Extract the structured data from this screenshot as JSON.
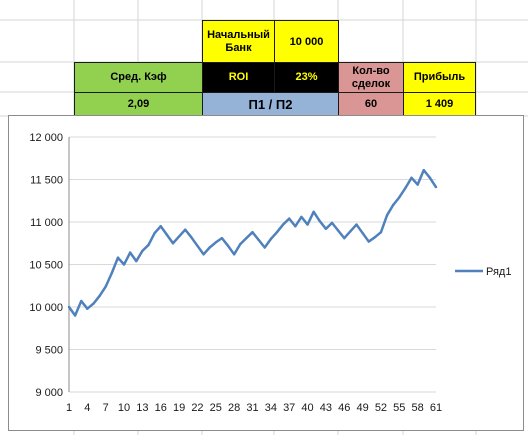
{
  "sheet": {
    "start_bank_label": "Начальный Банк",
    "start_bank_value": "10 000",
    "avg_coef_label": "Сред. Кэф",
    "avg_coef_value": "2,09",
    "roi_label": "ROI",
    "roi_value": "23%",
    "ratio_label": "П1 / П2",
    "deals_label": "Кол-во сделок",
    "deals_value": "60",
    "profit_label": "Прибыль",
    "profit_value": "1 409"
  },
  "colors": {
    "yellow": "#ffff00",
    "green": "#92d050",
    "black": "#000000",
    "pink": "#da9694",
    "blue": "#95b3d7",
    "series": "#4f81bd"
  },
  "chart_data": {
    "type": "line",
    "x": [
      1,
      2,
      3,
      4,
      5,
      6,
      7,
      8,
      9,
      10,
      11,
      12,
      13,
      14,
      15,
      16,
      17,
      18,
      19,
      20,
      21,
      22,
      23,
      24,
      25,
      26,
      27,
      28,
      29,
      30,
      31,
      32,
      33,
      34,
      35,
      36,
      37,
      38,
      39,
      40,
      41,
      42,
      43,
      44,
      45,
      46,
      47,
      48,
      49,
      50,
      51,
      52,
      53,
      54,
      55,
      56,
      57,
      58,
      59,
      60,
      61
    ],
    "x_tick_labels": [
      "1",
      "4",
      "7",
      "10",
      "13",
      "16",
      "19",
      "22",
      "25",
      "28",
      "31",
      "34",
      "37",
      "40",
      "43",
      "46",
      "49",
      "52",
      "55",
      "58",
      "61"
    ],
    "series": [
      {
        "name": "Ряд1",
        "values": [
          10000,
          9900,
          10070,
          9980,
          10040,
          10130,
          10240,
          10400,
          10580,
          10500,
          10640,
          10540,
          10660,
          10730,
          10870,
          10950,
          10850,
          10750,
          10830,
          10910,
          10820,
          10720,
          10620,
          10700,
          10760,
          10810,
          10720,
          10620,
          10740,
          10810,
          10880,
          10790,
          10700,
          10800,
          10880,
          10970,
          11040,
          10950,
          11060,
          10970,
          11120,
          11010,
          10920,
          10990,
          10900,
          10810,
          10890,
          10970,
          10870,
          10770,
          10820,
          10880,
          11080,
          11200,
          11290,
          11400,
          11520,
          11440,
          11610,
          11520,
          11410
        ]
      }
    ],
    "ylim": [
      9000,
      12000
    ],
    "y_ticks": [
      9000,
      9500,
      10000,
      10500,
      11000,
      11500,
      12000
    ],
    "y_tick_labels": [
      "9 000",
      "9 500",
      "10 000",
      "10 500",
      "11 000",
      "11 500",
      "12 000"
    ],
    "grid": "horizontal",
    "legend": "right"
  }
}
